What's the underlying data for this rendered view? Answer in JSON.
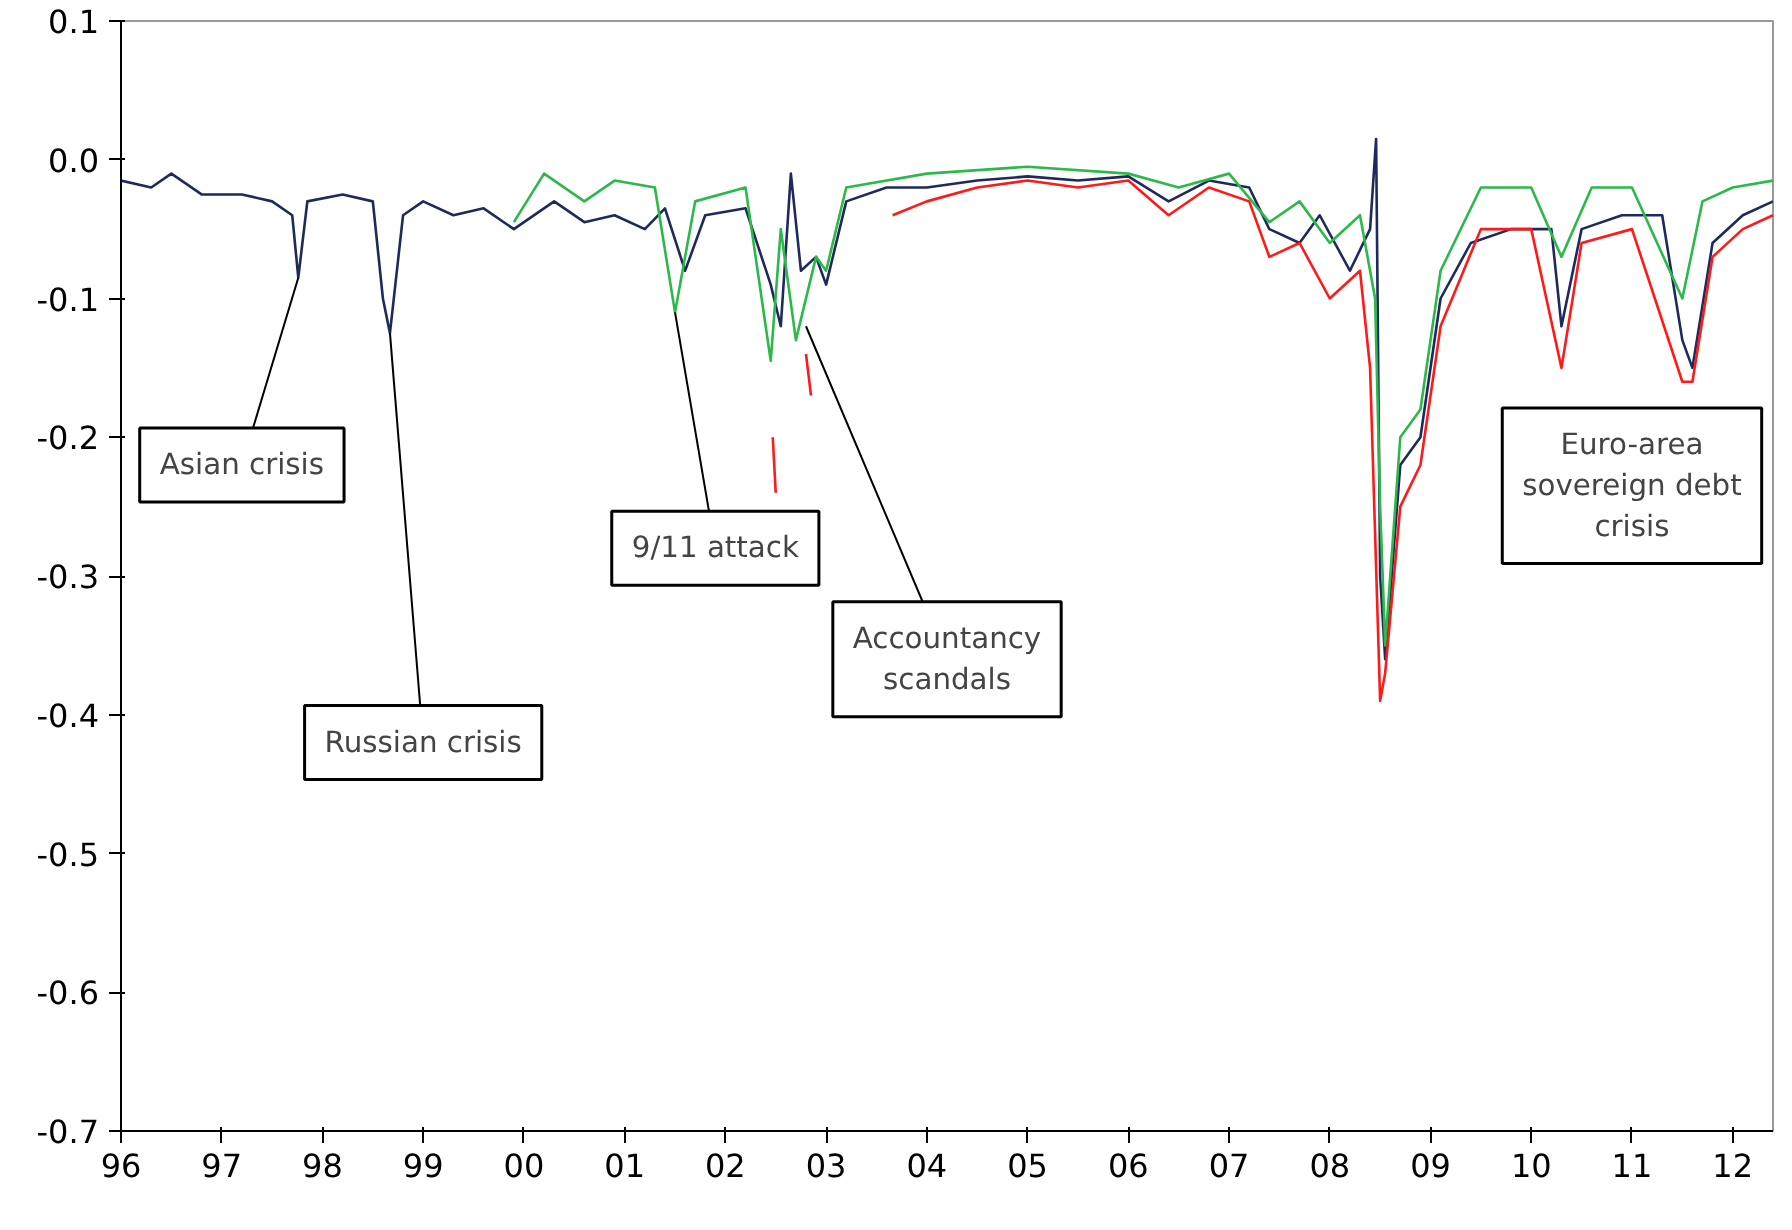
{
  "chart_data": {
    "type": "line",
    "xlim": [
      1996,
      2012.4
    ],
    "ylim": [
      -0.7,
      0.1
    ],
    "xticks": [
      {
        "value": 1996,
        "label": "96"
      },
      {
        "value": 1997,
        "label": "97"
      },
      {
        "value": 1998,
        "label": "98"
      },
      {
        "value": 1999,
        "label": "99"
      },
      {
        "value": 2000,
        "label": "00"
      },
      {
        "value": 2001,
        "label": "01"
      },
      {
        "value": 2002,
        "label": "02"
      },
      {
        "value": 2003,
        "label": "03"
      },
      {
        "value": 2004,
        "label": "04"
      },
      {
        "value": 2005,
        "label": "05"
      },
      {
        "value": 2006,
        "label": "06"
      },
      {
        "value": 2007,
        "label": "07"
      },
      {
        "value": 2008,
        "label": "08"
      },
      {
        "value": 2009,
        "label": "09"
      },
      {
        "value": 2010,
        "label": "10"
      },
      {
        "value": 2011,
        "label": "11"
      },
      {
        "value": 2012,
        "label": "12"
      }
    ],
    "yticks": [
      {
        "value": 0.1,
        "label": "0.1"
      },
      {
        "value": 0,
        "label": "0.0"
      },
      {
        "value": -0.1,
        "label": "-0.1"
      },
      {
        "value": -0.2,
        "label": "-0.2"
      },
      {
        "value": -0.3,
        "label": "-0.3"
      },
      {
        "value": -0.4,
        "label": "-0.4"
      },
      {
        "value": -0.5,
        "label": "-0.5"
      },
      {
        "value": -0.6,
        "label": "-0.6"
      },
      {
        "value": -0.7,
        "label": "-0.7"
      }
    ],
    "grid": false,
    "series": [
      {
        "color": "#1f2a5c",
        "x": [
          1996.0,
          1996.3,
          1996.5,
          1996.8,
          1997.2,
          1997.5,
          1997.7,
          1997.76,
          1997.85,
          1998.2,
          1998.5,
          1998.6,
          1998.67,
          1998.8,
          1999.0,
          1999.3,
          1999.6,
          1999.9,
          2000.3,
          2000.6,
          2000.9,
          2001.2,
          2001.4,
          2001.6,
          2001.8,
          2002.2,
          2002.45,
          2002.55,
          2002.65,
          2002.75,
          2002.9,
          2003.0,
          2003.2,
          2003.6,
          2004.0,
          2004.5,
          2005.0,
          2005.5,
          2006.0,
          2006.4,
          2006.8,
          2007.2,
          2007.4,
          2007.7,
          2007.9,
          2008.2,
          2008.4,
          2008.46,
          2008.5,
          2008.55,
          2008.7,
          2008.9,
          2009.1,
          2009.4,
          2009.8,
          2010.2,
          2010.3,
          2010.5,
          2010.9,
          2011.3,
          2011.5,
          2011.6,
          2011.8,
          2012.1,
          2012.4
        ],
        "values": [
          -0.015,
          -0.02,
          -0.01,
          -0.025,
          -0.025,
          -0.03,
          -0.04,
          -0.085,
          -0.03,
          -0.025,
          -0.03,
          -0.1,
          -0.125,
          -0.04,
          -0.03,
          -0.04,
          -0.035,
          -0.05,
          -0.03,
          -0.045,
          -0.04,
          -0.05,
          -0.035,
          -0.08,
          -0.04,
          -0.035,
          -0.09,
          -0.12,
          -0.01,
          -0.08,
          -0.07,
          -0.09,
          -0.03,
          -0.02,
          -0.02,
          -0.015,
          -0.012,
          -0.015,
          -0.012,
          -0.03,
          -0.015,
          -0.02,
          -0.05,
          -0.06,
          -0.04,
          -0.08,
          -0.05,
          0.015,
          -0.3,
          -0.36,
          -0.22,
          -0.2,
          -0.1,
          -0.06,
          -0.05,
          -0.05,
          -0.12,
          -0.05,
          -0.04,
          -0.04,
          -0.13,
          -0.15,
          -0.06,
          -0.04,
          -0.03
        ]
      },
      {
        "color": "#2db84a",
        "x": [
          1999.9,
          2000.2,
          2000.6,
          2000.9,
          2001.3,
          2001.5,
          2001.7,
          2002.2,
          2002.45,
          2002.55,
          2002.7,
          2002.9,
          2003.0,
          2003.2,
          2004.0,
          2005.0,
          2006.0,
          2006.5,
          2007.0,
          2007.4,
          2007.7,
          2008.0,
          2008.3,
          2008.45,
          2008.5,
          2008.55,
          2008.7,
          2008.9,
          2009.1,
          2009.5,
          2010.0,
          2010.3,
          2010.6,
          2011.0,
          2011.5,
          2011.7,
          2012.0,
          2012.4
        ],
        "values": [
          -0.045,
          -0.01,
          -0.03,
          -0.015,
          -0.02,
          -0.11,
          -0.03,
          -0.02,
          -0.145,
          -0.05,
          -0.13,
          -0.07,
          -0.08,
          -0.02,
          -0.01,
          -0.005,
          -0.01,
          -0.02,
          -0.01,
          -0.045,
          -0.03,
          -0.06,
          -0.04,
          -0.1,
          -0.25,
          -0.35,
          -0.2,
          -0.18,
          -0.08,
          -0.02,
          -0.02,
          -0.07,
          -0.02,
          -0.02,
          -0.1,
          -0.03,
          -0.02,
          -0.015
        ]
      },
      {
        "color": "#ff1a1a",
        "x": [
          2002.47,
          2002.5,
          2002.6,
          2002.8,
          2002.85,
          2003.0,
          2003.66,
          2004.0,
          2004.5,
          2005.0,
          2005.5,
          2006.0,
          2006.4,
          2006.8,
          2007.2,
          2007.4,
          2007.7,
          2008.0,
          2008.3,
          2008.4,
          2008.5,
          2008.55,
          2008.7,
          2008.9,
          2009.1,
          2009.5,
          2010.0,
          2010.3,
          2010.5,
          2011.0,
          2011.5,
          2011.6,
          2011.8,
          2012.1,
          2012.4
        ],
        "values": [
          -0.2,
          -0.24,
          null,
          -0.14,
          -0.17,
          null,
          -0.04,
          -0.03,
          -0.02,
          -0.015,
          -0.02,
          -0.015,
          -0.04,
          -0.02,
          -0.03,
          -0.07,
          -0.06,
          -0.1,
          -0.08,
          -0.15,
          -0.39,
          -0.37,
          -0.25,
          -0.22,
          -0.12,
          -0.05,
          -0.05,
          -0.15,
          -0.06,
          -0.05,
          -0.16,
          -0.16,
          -0.07,
          -0.05,
          -0.04
        ]
      }
    ],
    "annotations": [
      {
        "text": "Asian crisis",
        "x": 1997.76,
        "y": -0.085
      },
      {
        "text": "Russian crisis",
        "x": 1998.67,
        "y": -0.125
      },
      {
        "text": "9/11 attack",
        "x": 2001.5,
        "y": -0.11
      },
      {
        "text": "Accountancy scandals",
        "x": 2002.8,
        "y": -0.12
      },
      "Euro-area sovereign debt crisis"
    ]
  }
}
